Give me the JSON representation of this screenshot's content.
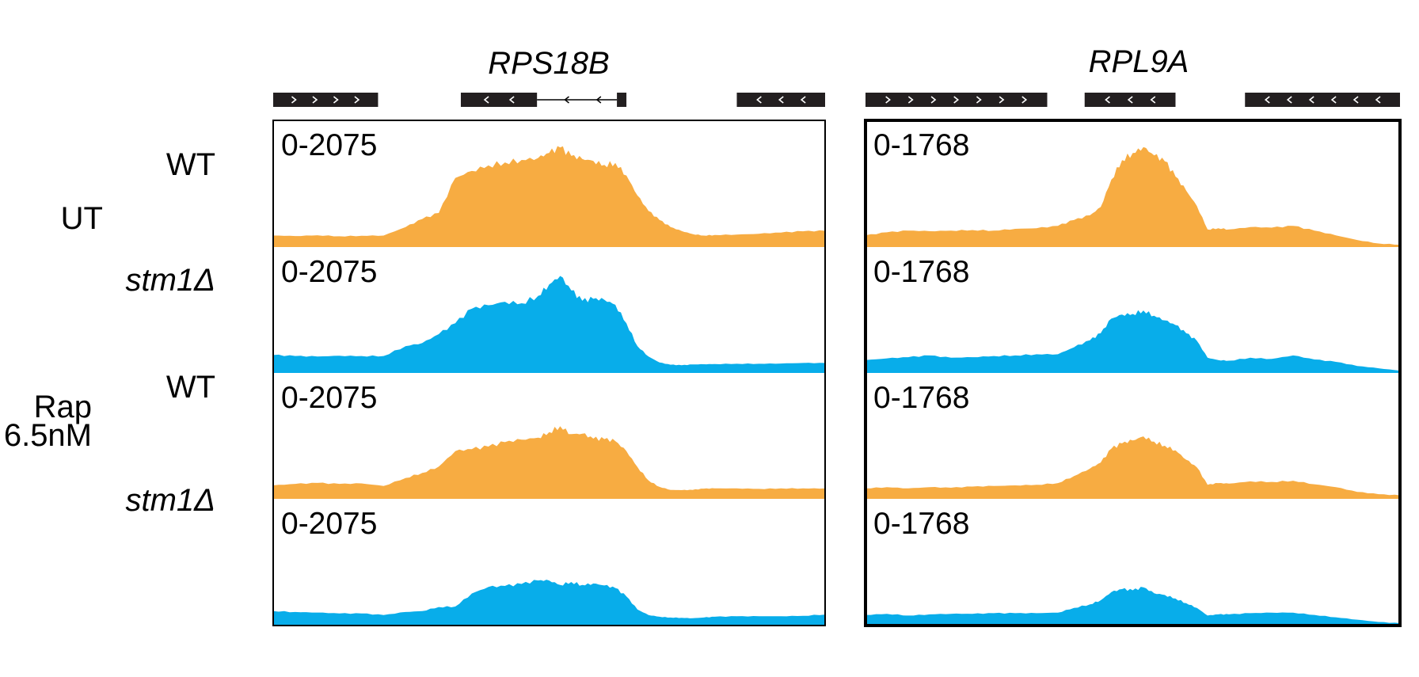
{
  "colors": {
    "wt": "#F7AC42",
    "mutant": "#08ADEA",
    "frame": "#000000",
    "gene_box": "#231F20"
  },
  "row_groups": [
    {
      "label": "UT"
    },
    {
      "label": "Rap",
      "label2": "6.5nM"
    }
  ],
  "row_labels": [
    "WT",
    "stm1Δ",
    "WT",
    "stm1Δ"
  ],
  "chart_data": [
    {
      "type": "area",
      "title": "RPS18B",
      "data_range_label": "0-2075",
      "ymax": 2075,
      "genes": [
        {
          "start": 0.0,
          "end": 0.19,
          "strand": "+"
        },
        {
          "start": 0.34,
          "end": 0.64,
          "strand": "-"
        },
        {
          "start": 0.84,
          "end": 1.0,
          "strand": "-"
        }
      ],
      "x": [
        0,
        0.04,
        0.08,
        0.12,
        0.16,
        0.2,
        0.24,
        0.27,
        0.3,
        0.33,
        0.36,
        0.39,
        0.42,
        0.45,
        0.48,
        0.5,
        0.52,
        0.54,
        0.56,
        0.58,
        0.6,
        0.62,
        0.64,
        0.66,
        0.68,
        0.7,
        0.72,
        0.74,
        0.76,
        0.78,
        0.8,
        0.84,
        0.88,
        0.92,
        0.96,
        1.0
      ],
      "series": [
        {
          "name": "WT",
          "condition": "UT",
          "values": [
            230,
            220,
            235,
            215,
            225,
            230,
            400,
            560,
            680,
            1380,
            1520,
            1630,
            1690,
            1740,
            1780,
            1880,
            1990,
            1820,
            1760,
            1720,
            1640,
            1680,
            1430,
            1030,
            720,
            540,
            400,
            320,
            260,
            230,
            240,
            250,
            265,
            290,
            315,
            325
          ]
        },
        {
          "name": "stm1Δ",
          "condition": "UT",
          "values": [
            360,
            340,
            330,
            345,
            340,
            340,
            540,
            600,
            780,
            1000,
            1290,
            1360,
            1430,
            1400,
            1550,
            1780,
            1950,
            1660,
            1450,
            1490,
            1470,
            1370,
            1000,
            540,
            330,
            210,
            165,
            155,
            170,
            175,
            180,
            185,
            185,
            190,
            200,
            200
          ]
        },
        {
          "name": "WT",
          "condition": "Rap 6.5nM",
          "values": [
            270,
            300,
            320,
            300,
            310,
            260,
            420,
            520,
            650,
            960,
            1000,
            1050,
            1140,
            1190,
            1230,
            1340,
            1460,
            1300,
            1310,
            1210,
            1200,
            1160,
            960,
            640,
            370,
            240,
            180,
            175,
            180,
            205,
            210,
            210,
            200,
            210,
            210,
            210
          ]
        },
        {
          "name": "stm1Δ",
          "condition": "Rap 6.5nM",
          "values": [
            290,
            270,
            260,
            240,
            240,
            210,
            270,
            290,
            370,
            380,
            640,
            770,
            790,
            830,
            900,
            900,
            810,
            870,
            810,
            840,
            800,
            750,
            580,
            320,
            210,
            175,
            160,
            155,
            145,
            160,
            175,
            185,
            185,
            185,
            195,
            220
          ]
        }
      ]
    },
    {
      "type": "area",
      "title": "RPL9A",
      "data_range_label": "0-1768",
      "ymax": 1768,
      "genes": [
        {
          "start": 0.0,
          "end": 0.34,
          "strand": "+"
        },
        {
          "start": 0.41,
          "end": 0.58,
          "strand": "-"
        },
        {
          "start": 0.71,
          "end": 1.0,
          "strand": "-"
        }
      ],
      "x": [
        0,
        0.04,
        0.08,
        0.12,
        0.16,
        0.2,
        0.24,
        0.28,
        0.32,
        0.36,
        0.39,
        0.42,
        0.44,
        0.46,
        0.48,
        0.5,
        0.52,
        0.54,
        0.56,
        0.58,
        0.6,
        0.62,
        0.64,
        0.66,
        0.68,
        0.72,
        0.76,
        0.8,
        0.84,
        0.88,
        0.92,
        0.96,
        1.0
      ],
      "series": [
        {
          "name": "WT",
          "condition": "UT",
          "values": [
            200,
            250,
            280,
            270,
            280,
            290,
            280,
            310,
            320,
            360,
            460,
            540,
            680,
            1150,
            1480,
            1600,
            1700,
            1560,
            1460,
            1200,
            960,
            700,
            300,
            320,
            300,
            340,
            330,
            360,
            280,
            200,
            120,
            60,
            40
          ]
        },
        {
          "name": "stm1Δ",
          "condition": "UT",
          "values": [
            220,
            250,
            270,
            300,
            260,
            270,
            290,
            300,
            320,
            320,
            440,
            560,
            680,
            930,
            1000,
            1010,
            1070,
            980,
            900,
            820,
            680,
            550,
            260,
            220,
            210,
            260,
            240,
            300,
            230,
            190,
            120,
            80,
            40
          ]
        },
        {
          "name": "WT",
          "condition": "Rap 6.5nM",
          "values": [
            180,
            200,
            180,
            200,
            190,
            210,
            220,
            230,
            240,
            270,
            390,
            520,
            620,
            860,
            950,
            1000,
            1070,
            980,
            910,
            830,
            670,
            540,
            240,
            270,
            260,
            300,
            290,
            310,
            250,
            200,
            120,
            80,
            60
          ]
        },
        {
          "name": "stm1Δ",
          "condition": "Rap 6.5nM",
          "values": [
            180,
            200,
            170,
            190,
            200,
            200,
            210,
            210,
            210,
            220,
            300,
            360,
            430,
            570,
            620,
            600,
            650,
            550,
            520,
            460,
            380,
            300,
            170,
            190,
            190,
            210,
            220,
            220,
            180,
            140,
            100,
            60,
            40
          ]
        }
      ]
    }
  ]
}
